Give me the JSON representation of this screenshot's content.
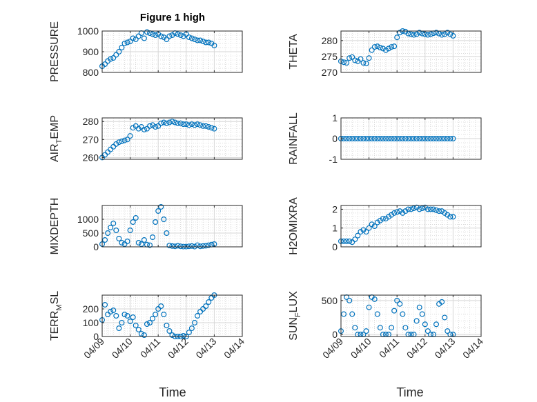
{
  "figure_title": "Figure 1 high",
  "colors": {
    "marker": "#0072BD",
    "axis": "#262626",
    "grid": "#d6d6d6",
    "minor_grid": "#c4c4c4"
  },
  "chart_data": [
    {
      "type": "scatter",
      "ylabel_parts": [
        "PRESSURE"
      ],
      "ylim": [
        800,
        1000
      ],
      "yticks": [
        800,
        900,
        1000
      ],
      "xlim": [
        0,
        5
      ],
      "xtick_labels": [
        "04/09",
        "04/10",
        "04/11",
        "04/12",
        "04/13",
        "04/14"
      ],
      "show_xtick_labels": false,
      "x": [
        0.0,
        0.1,
        0.2,
        0.3,
        0.4,
        0.5,
        0.6,
        0.7,
        0.8,
        0.9,
        1.0,
        1.1,
        1.2,
        1.3,
        1.4,
        1.5,
        1.6,
        1.7,
        1.8,
        1.9,
        2.0,
        2.1,
        2.2,
        2.3,
        2.4,
        2.5,
        2.6,
        2.7,
        2.8,
        2.9,
        3.0,
        3.1,
        3.2,
        3.3,
        3.4,
        3.5,
        3.6,
        3.7,
        3.8,
        3.9,
        4.0
      ],
      "y": [
        830,
        840,
        855,
        865,
        870,
        885,
        900,
        920,
        940,
        945,
        950,
        965,
        960,
        975,
        990,
        965,
        995,
        990,
        985,
        980,
        985,
        975,
        970,
        960,
        975,
        980,
        990,
        985,
        980,
        975,
        985,
        970,
        965,
        960,
        955,
        955,
        950,
        945,
        945,
        940,
        930
      ]
    },
    {
      "type": "scatter",
      "ylabel_parts": [
        "THETA"
      ],
      "ylim": [
        270,
        283
      ],
      "yticks": [
        270,
        275,
        280
      ],
      "xlim": [
        0,
        5
      ],
      "xtick_labels": [
        "04/09",
        "04/10",
        "04/11",
        "04/12",
        "04/13",
        "04/14"
      ],
      "show_xtick_labels": false,
      "x": [
        0.0,
        0.1,
        0.2,
        0.3,
        0.4,
        0.5,
        0.6,
        0.7,
        0.8,
        0.9,
        1.0,
        1.1,
        1.2,
        1.3,
        1.4,
        1.5,
        1.6,
        1.7,
        1.8,
        1.9,
        2.0,
        2.1,
        2.2,
        2.3,
        2.4,
        2.5,
        2.6,
        2.7,
        2.8,
        2.9,
        3.0,
        3.1,
        3.2,
        3.3,
        3.4,
        3.5,
        3.6,
        3.7,
        3.8,
        3.9,
        4.0
      ],
      "y": [
        273.5,
        273.2,
        273.0,
        274.5,
        274.8,
        273.8,
        273.5,
        274.2,
        273.0,
        272.8,
        274.5,
        277.0,
        278.0,
        278.2,
        277.8,
        277.5,
        277.0,
        277.5,
        278.0,
        278.2,
        281.0,
        282.5,
        283.0,
        282.8,
        282.2,
        282.0,
        281.8,
        282.0,
        282.5,
        282.2,
        282.0,
        281.8,
        282.0,
        282.3,
        282.5,
        282.2,
        281.8,
        282.0,
        282.5,
        282.0,
        281.5
      ]
    },
    {
      "type": "scatter",
      "ylabel_parts": [
        "AIR",
        "T",
        "EMP"
      ],
      "ylim": [
        259,
        282
      ],
      "yticks": [
        260,
        270,
        280
      ],
      "xlim": [
        0,
        5
      ],
      "xtick_labels": [
        "04/09",
        "04/10",
        "04/11",
        "04/12",
        "04/13",
        "04/14"
      ],
      "show_xtick_labels": false,
      "x": [
        0.0,
        0.1,
        0.2,
        0.3,
        0.4,
        0.5,
        0.6,
        0.7,
        0.8,
        0.9,
        1.0,
        1.1,
        1.2,
        1.3,
        1.4,
        1.5,
        1.6,
        1.7,
        1.8,
        1.9,
        2.0,
        2.1,
        2.2,
        2.3,
        2.4,
        2.5,
        2.6,
        2.7,
        2.8,
        2.9,
        3.0,
        3.1,
        3.2,
        3.3,
        3.4,
        3.5,
        3.6,
        3.7,
        3.8,
        3.9,
        4.0
      ],
      "y": [
        260.0,
        261.5,
        263.0,
        264.5,
        266.0,
        267.5,
        268.5,
        269.0,
        269.5,
        270.0,
        272.0,
        276.5,
        277.5,
        276.0,
        277.0,
        275.5,
        276.0,
        277.5,
        278.0,
        277.0,
        277.5,
        279.0,
        279.5,
        279.0,
        279.5,
        280.0,
        279.5,
        279.0,
        279.0,
        278.5,
        278.5,
        278.0,
        278.5,
        278.0,
        278.5,
        278.0,
        277.5,
        277.5,
        277.0,
        276.5,
        276.0
      ]
    },
    {
      "type": "scatter",
      "ylabel_parts": [
        "RAINFALL"
      ],
      "ylim": [
        -1,
        1
      ],
      "yticks": [
        -1,
        0,
        1
      ],
      "xlim": [
        0,
        5
      ],
      "xtick_labels": [
        "04/09",
        "04/10",
        "04/11",
        "04/12",
        "04/13",
        "04/14"
      ],
      "show_xtick_labels": false,
      "x": [
        0.0,
        0.1,
        0.2,
        0.3,
        0.4,
        0.5,
        0.6,
        0.7,
        0.8,
        0.9,
        1.0,
        1.1,
        1.2,
        1.3,
        1.4,
        1.5,
        1.6,
        1.7,
        1.8,
        1.9,
        2.0,
        2.1,
        2.2,
        2.3,
        2.4,
        2.5,
        2.6,
        2.7,
        2.8,
        2.9,
        3.0,
        3.1,
        3.2,
        3.3,
        3.4,
        3.5,
        3.6,
        3.7,
        3.8,
        3.9,
        4.0
      ],
      "y": [
        0,
        0,
        0,
        0,
        0,
        0,
        0,
        0,
        0,
        0,
        0,
        0,
        0,
        0,
        0,
        0,
        0,
        0,
        0,
        0,
        0,
        0,
        0,
        0,
        0,
        0,
        0,
        0,
        0,
        0,
        0,
        0,
        0,
        0,
        0,
        0,
        0,
        0,
        0,
        0,
        0
      ]
    },
    {
      "type": "scatter",
      "ylabel_parts": [
        "MIXDEPTH"
      ],
      "ylim": [
        0,
        1500
      ],
      "yticks": [
        0,
        500,
        1000
      ],
      "xlim": [
        0,
        5
      ],
      "xtick_labels": [
        "04/09",
        "04/10",
        "04/11",
        "04/12",
        "04/13",
        "04/14"
      ],
      "show_xtick_labels": false,
      "x": [
        0.0,
        0.1,
        0.2,
        0.3,
        0.4,
        0.5,
        0.6,
        0.7,
        0.8,
        0.9,
        1.0,
        1.1,
        1.2,
        1.3,
        1.4,
        1.5,
        1.6,
        1.7,
        1.8,
        1.9,
        2.0,
        2.1,
        2.2,
        2.3,
        2.4,
        2.5,
        2.6,
        2.7,
        2.8,
        2.9,
        3.0,
        3.1,
        3.2,
        3.3,
        3.4,
        3.5,
        3.6,
        3.7,
        3.8,
        3.9,
        4.0
      ],
      "y": [
        100,
        250,
        500,
        700,
        850,
        600,
        300,
        150,
        100,
        200,
        600,
        900,
        1050,
        150,
        100,
        250,
        80,
        60,
        350,
        900,
        1300,
        1450,
        1000,
        500,
        50,
        30,
        20,
        40,
        20,
        10,
        10,
        20,
        30,
        10,
        60,
        20,
        30,
        40,
        60,
        80,
        100
      ]
    },
    {
      "type": "scatter",
      "ylabel_parts": [
        "H2OMIXRA"
      ],
      "ylim": [
        0,
        2.2
      ],
      "yticks": [
        0,
        1,
        2
      ],
      "xlim": [
        0,
        5
      ],
      "xtick_labels": [
        "04/09",
        "04/10",
        "04/11",
        "04/12",
        "04/13",
        "04/14"
      ],
      "show_xtick_labels": false,
      "x": [
        0.0,
        0.1,
        0.2,
        0.3,
        0.4,
        0.5,
        0.6,
        0.7,
        0.8,
        0.9,
        1.0,
        1.1,
        1.2,
        1.3,
        1.4,
        1.5,
        1.6,
        1.7,
        1.8,
        1.9,
        2.0,
        2.1,
        2.2,
        2.3,
        2.4,
        2.5,
        2.6,
        2.7,
        2.8,
        2.9,
        3.0,
        3.1,
        3.2,
        3.3,
        3.4,
        3.5,
        3.6,
        3.7,
        3.8,
        3.9,
        4.0
      ],
      "y": [
        0.3,
        0.3,
        0.3,
        0.3,
        0.25,
        0.4,
        0.6,
        0.8,
        0.9,
        0.8,
        1.0,
        1.2,
        1.1,
        1.3,
        1.4,
        1.5,
        1.5,
        1.6,
        1.7,
        1.8,
        1.85,
        1.9,
        1.8,
        1.9,
        2.0,
        2.0,
        2.05,
        2.1,
        2.0,
        2.05,
        2.1,
        2.0,
        2.0,
        2.0,
        1.95,
        1.9,
        1.9,
        1.8,
        1.7,
        1.6,
        1.6
      ]
    },
    {
      "type": "scatter",
      "ylabel_parts": [
        "TERR",
        "M",
        "SL"
      ],
      "ylim": [
        0,
        300
      ],
      "yticks": [
        0,
        100,
        200
      ],
      "xlim": [
        0,
        5
      ],
      "xtick_labels": [
        "04/09",
        "04/10",
        "04/11",
        "04/12",
        "04/13",
        "04/14"
      ],
      "show_xtick_labels": true,
      "x": [
        0.0,
        0.1,
        0.2,
        0.3,
        0.4,
        0.5,
        0.6,
        0.7,
        0.8,
        0.9,
        1.0,
        1.1,
        1.2,
        1.3,
        1.4,
        1.5,
        1.6,
        1.7,
        1.8,
        1.9,
        2.0,
        2.1,
        2.2,
        2.3,
        2.4,
        2.5,
        2.6,
        2.7,
        2.8,
        2.9,
        3.0,
        3.1,
        3.2,
        3.3,
        3.4,
        3.5,
        3.6,
        3.7,
        3.8,
        3.9,
        4.0
      ],
      "y": [
        120,
        230,
        160,
        180,
        190,
        150,
        60,
        100,
        160,
        150,
        110,
        140,
        80,
        50,
        20,
        10,
        90,
        100,
        130,
        160,
        200,
        220,
        160,
        80,
        40,
        10,
        0,
        0,
        0,
        5,
        0,
        30,
        60,
        100,
        150,
        180,
        200,
        220,
        250,
        280,
        300
      ]
    },
    {
      "type": "scatter",
      "ylabel_parts": [
        "SUN",
        "F",
        "LUX"
      ],
      "ylim": [
        -30,
        580
      ],
      "yticks": [
        0,
        500
      ],
      "xlim": [
        0,
        5
      ],
      "xtick_labels": [
        "04/09",
        "04/10",
        "04/11",
        "04/12",
        "04/13",
        "04/14"
      ],
      "show_xtick_labels": true,
      "x": [
        0.0,
        0.1,
        0.2,
        0.3,
        0.4,
        0.5,
        0.6,
        0.7,
        0.8,
        0.9,
        1.0,
        1.1,
        1.2,
        1.3,
        1.4,
        1.5,
        1.6,
        1.7,
        1.8,
        1.9,
        2.0,
        2.1,
        2.2,
        2.3,
        2.4,
        2.5,
        2.6,
        2.7,
        2.8,
        2.9,
        3.0,
        3.1,
        3.2,
        3.3,
        3.4,
        3.5,
        3.6,
        3.7,
        3.8,
        3.9,
        4.0
      ],
      "y": [
        50,
        300,
        550,
        500,
        300,
        100,
        0,
        0,
        0,
        50,
        400,
        550,
        520,
        300,
        100,
        0,
        0,
        0,
        100,
        350,
        500,
        450,
        300,
        100,
        0,
        0,
        0,
        200,
        400,
        300,
        150,
        50,
        0,
        0,
        150,
        450,
        480,
        250,
        50,
        0,
        0
      ]
    }
  ],
  "xlabel": "Time"
}
